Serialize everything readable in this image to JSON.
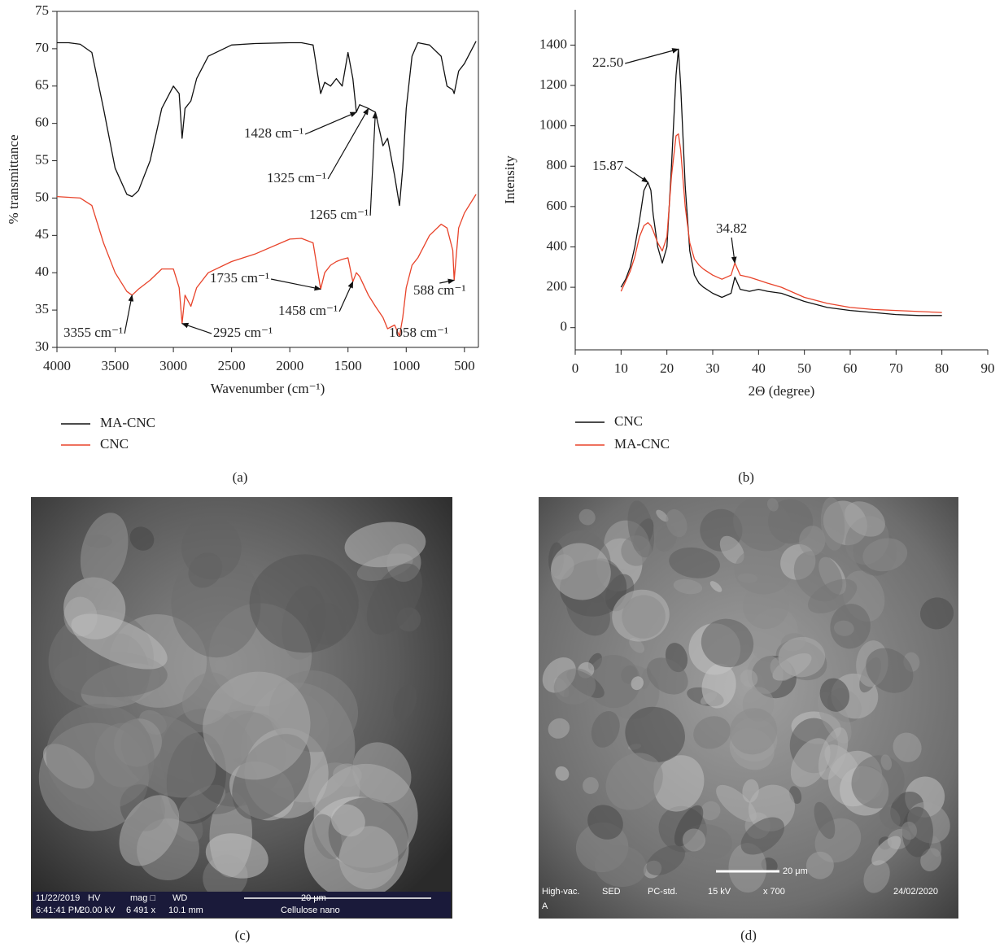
{
  "chart_data": [
    {
      "type": "line",
      "panel_label": "(a)",
      "xlabel": "Wavenumber (cm⁻¹)",
      "ylabel": "% transmittance",
      "xlim": [
        4000,
        380
      ],
      "ylim": [
        30,
        75
      ],
      "xticks": [
        4000,
        3500,
        3000,
        2500,
        2000,
        1500,
        1000,
        500
      ],
      "yticks": [
        30,
        35,
        40,
        45,
        50,
        55,
        60,
        65,
        70,
        75
      ],
      "x": [
        4000,
        3900,
        3800,
        3700,
        3600,
        3500,
        3400,
        3355,
        3300,
        3200,
        3100,
        3000,
        2950,
        2925,
        2900,
        2850,
        2800,
        2700,
        2500,
        2300,
        2000,
        1900,
        1800,
        1735,
        1700,
        1650,
        1600,
        1550,
        1500,
        1458,
        1428,
        1400,
        1325,
        1265,
        1200,
        1160,
        1100,
        1058,
        1030,
        1000,
        950,
        900,
        800,
        700,
        650,
        600,
        588,
        550,
        500,
        400
      ],
      "series": [
        {
          "name": "MA-CNC",
          "color": "#111111",
          "values": [
            70.8,
            70.8,
            70.6,
            69.5,
            62,
            54,
            50.5,
            50.2,
            51,
            55,
            62,
            65,
            64,
            58,
            62,
            63,
            66,
            69,
            70.5,
            70.7,
            70.8,
            70.8,
            70.5,
            64,
            65.5,
            65,
            66,
            65,
            69.5,
            66,
            61.5,
            62.5,
            62,
            61.5,
            57,
            58,
            53,
            49,
            54,
            62,
            69,
            70.8,
            70.5,
            69,
            65,
            64.5,
            64,
            67,
            68,
            71
          ]
        },
        {
          "name": "CNC",
          "color": "#e8432a",
          "values": [
            50.2,
            50.1,
            50,
            49,
            44,
            40,
            37.5,
            37,
            37.8,
            39,
            40.5,
            40.5,
            38,
            33.2,
            37,
            35.5,
            38,
            40,
            41.5,
            42.5,
            44.5,
            44.6,
            44,
            37.8,
            40,
            41,
            41.5,
            41.8,
            42,
            38.8,
            40,
            39.5,
            37,
            35.5,
            34,
            32.5,
            33,
            31.5,
            34,
            38,
            41,
            42,
            45,
            46.5,
            46,
            43,
            39,
            46,
            48,
            50.5
          ]
        }
      ],
      "annotations": [
        {
          "text": "1428 cm⁻¹",
          "x": 1428,
          "y": 61.5
        },
        {
          "text": "1325 cm⁻¹",
          "x": 1325,
          "y": 62
        },
        {
          "text": "1265 cm⁻¹",
          "x": 1265,
          "y": 61.5
        },
        {
          "text": "1735 cm⁻¹",
          "x": 1735,
          "y": 37.8
        },
        {
          "text": "1458 cm⁻¹",
          "x": 1458,
          "y": 38.8
        },
        {
          "text": "588 cm⁻¹",
          "x": 588,
          "y": 39
        },
        {
          "text": "3355 cm⁻¹",
          "x": 3355,
          "y": 37
        },
        {
          "text": "2925 cm⁻¹",
          "x": 2925,
          "y": 33.2
        },
        {
          "text": "1058 cm⁻¹",
          "x": 1058,
          "y": 31.5
        }
      ]
    },
    {
      "type": "line",
      "panel_label": "(b)",
      "xlabel": "2Θ (degree)",
      "ylabel": "Intensity",
      "xlim": [
        0,
        90
      ],
      "ylim": [
        -110,
        1575
      ],
      "xticks": [
        0,
        10,
        20,
        30,
        40,
        50,
        60,
        70,
        80,
        90
      ],
      "yticks": [
        0,
        200,
        400,
        600,
        800,
        1000,
        1200,
        1400
      ],
      "x": [
        10,
        11,
        12,
        13,
        14,
        15,
        15.87,
        16.5,
        17,
        18,
        19,
        20,
        21,
        22,
        22.5,
        23,
        24,
        25,
        26,
        27,
        28,
        30,
        32,
        34,
        34.82,
        36,
        38,
        40,
        42,
        45,
        50,
        55,
        60,
        65,
        70,
        75,
        80
      ],
      "series": [
        {
          "name": "CNC",
          "color": "#111111",
          "values": [
            200,
            240,
            300,
            400,
            530,
            680,
            720,
            680,
            560,
            400,
            320,
            400,
            800,
            1250,
            1380,
            1200,
            700,
            380,
            260,
            220,
            200,
            170,
            150,
            170,
            250,
            190,
            180,
            190,
            180,
            170,
            130,
            100,
            85,
            75,
            65,
            60,
            60
          ]
        },
        {
          "name": "MA-CNC",
          "color": "#e8432a",
          "values": [
            180,
            230,
            280,
            350,
            450,
            505,
            520,
            505,
            480,
            420,
            380,
            450,
            750,
            950,
            960,
            880,
            600,
            420,
            340,
            310,
            290,
            260,
            240,
            260,
            320,
            260,
            250,
            235,
            220,
            200,
            150,
            120,
            100,
            90,
            85,
            80,
            75
          ]
        }
      ],
      "annotations": [
        {
          "text": "22.50",
          "x": 22.5,
          "y": 1380
        },
        {
          "text": "15.87",
          "x": 15.87,
          "y": 720
        },
        {
          "text": "34.82",
          "x": 34.82,
          "y": 320
        }
      ]
    }
  ],
  "images": [
    {
      "label": "(c)",
      "info": [
        "11/22/2019",
        "6:41:41 PM",
        "HV",
        "20.00 kV",
        "mag □",
        "6 491 x",
        "WD",
        "10.1 mm",
        "20 μm",
        "Cellulose nano"
      ]
    },
    {
      "label": "(d)",
      "info": [
        "High-vac.",
        "SED",
        "PC-std.",
        "15 kV",
        "x 700",
        "24/02/2020",
        "A",
        "20 μm"
      ]
    }
  ]
}
